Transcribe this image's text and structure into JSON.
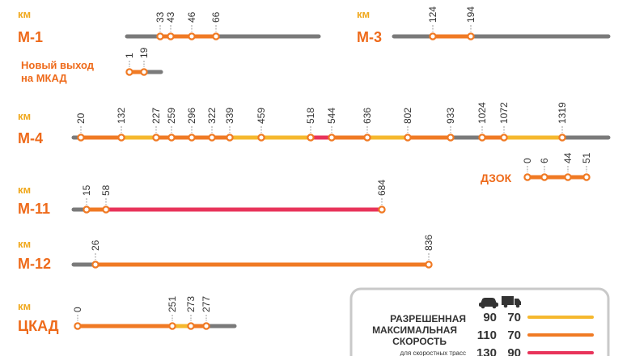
{
  "colors": {
    "gray": "#7a7a7a",
    "yellow": "#f5b82e",
    "orange": "#f07a24",
    "red": "#e8335a",
    "label_orange": "#ee6a1a",
    "km_yellow": "#f0a81c",
    "dot_fill": "#ffffff",
    "legend_border": "#c9c9c9"
  },
  "km_label": "км",
  "routes": [
    {
      "id": "m1",
      "name": "М-1",
      "km_values": [
        "33",
        "43",
        "46",
        "66"
      ],
      "segments": [
        {
          "from": "start",
          "to": "33",
          "color": "gray"
        },
        {
          "from": "33",
          "to": "66",
          "color": "orange"
        },
        {
          "from": "66",
          "to": "end",
          "color": "gray"
        }
      ]
    },
    {
      "id": "m3",
      "name": "М-3",
      "km_values": [
        "124",
        "194"
      ],
      "segments": [
        {
          "from": "start",
          "to": "124",
          "color": "gray"
        },
        {
          "from": "124",
          "to": "194",
          "color": "orange"
        },
        {
          "from": "194",
          "to": "end",
          "color": "gray"
        }
      ]
    },
    {
      "id": "mkad",
      "name_lines": [
        "Новый выход",
        "на МКАД"
      ],
      "km_values": [
        "1",
        "19"
      ],
      "segments": [
        {
          "from": "start",
          "to": "19",
          "color": "orange"
        },
        {
          "from": "19",
          "to": "end",
          "color": "gray"
        }
      ]
    },
    {
      "id": "m4",
      "name": "М-4",
      "km_values": [
        "20",
        "132",
        "227",
        "259",
        "296",
        "322",
        "339",
        "459",
        "518",
        "544",
        "636",
        "802",
        "933",
        "1024",
        "1072",
        "1319"
      ],
      "segments": [
        {
          "from": "start",
          "to": "20",
          "color": "gray"
        },
        {
          "from": "20",
          "to": "132",
          "color": "orange"
        },
        {
          "from": "132",
          "to": "227",
          "color": "yellow"
        },
        {
          "from": "227",
          "to": "339",
          "color": "orange"
        },
        {
          "from": "339",
          "to": "459",
          "color": "yellow"
        },
        {
          "from": "459",
          "to": "518",
          "color": "yellow"
        },
        {
          "from": "518",
          "to": "544",
          "color": "red"
        },
        {
          "from": "544",
          "to": "636",
          "color": "orange"
        },
        {
          "from": "636",
          "to": "802",
          "color": "yellow"
        },
        {
          "from": "802",
          "to": "933",
          "color": "orange"
        },
        {
          "from": "933",
          "to": "1024",
          "color": "gray"
        },
        {
          "from": "1024",
          "to": "1072",
          "color": "orange"
        },
        {
          "from": "1072",
          "to": "1319",
          "color": "yellow"
        },
        {
          "from": "1319",
          "to": "end",
          "color": "gray"
        }
      ]
    },
    {
      "id": "dzok",
      "name": "ДЗОК",
      "km_values": [
        "0",
        "6",
        "44",
        "51"
      ],
      "segments": [
        {
          "from": "0",
          "to": "51",
          "color": "orange"
        }
      ]
    },
    {
      "id": "m11",
      "name": "М-11",
      "km_values": [
        "15",
        "58",
        "684"
      ],
      "segments": [
        {
          "from": "start",
          "to": "15",
          "color": "gray"
        },
        {
          "from": "15",
          "to": "58",
          "color": "orange"
        },
        {
          "from": "58",
          "to": "684",
          "color": "red"
        }
      ]
    },
    {
      "id": "m12",
      "name": "М-12",
      "km_values": [
        "26",
        "836"
      ],
      "segments": [
        {
          "from": "start",
          "to": "26",
          "color": "gray"
        },
        {
          "from": "26",
          "to": "836",
          "color": "orange"
        }
      ]
    },
    {
      "id": "tskad",
      "name": "ЦКАД",
      "km_values": [
        "0",
        "251",
        "273",
        "277"
      ],
      "segments": [
        {
          "from": "0",
          "to": "251",
          "color": "orange"
        },
        {
          "from": "251",
          "to": "273",
          "color": "yellow"
        },
        {
          "from": "273",
          "to": "277",
          "color": "orange"
        },
        {
          "from": "277",
          "to": "end",
          "color": "gray"
        }
      ]
    }
  ],
  "legend": {
    "title_lines": [
      "РАЗРЕШЕННАЯ",
      "МАКСИМАЛЬНАЯ",
      "СКОРОСТЬ"
    ],
    "subtitle": "для скоростных трасс",
    "car_icon": "car-icon",
    "truck_icon": "truck-icon",
    "rows": [
      {
        "car": "90",
        "truck": "70",
        "color": "yellow"
      },
      {
        "car": "110",
        "truck": "70",
        "color": "orange"
      },
      {
        "car": "130",
        "truck": "90",
        "color": "red"
      }
    ]
  }
}
